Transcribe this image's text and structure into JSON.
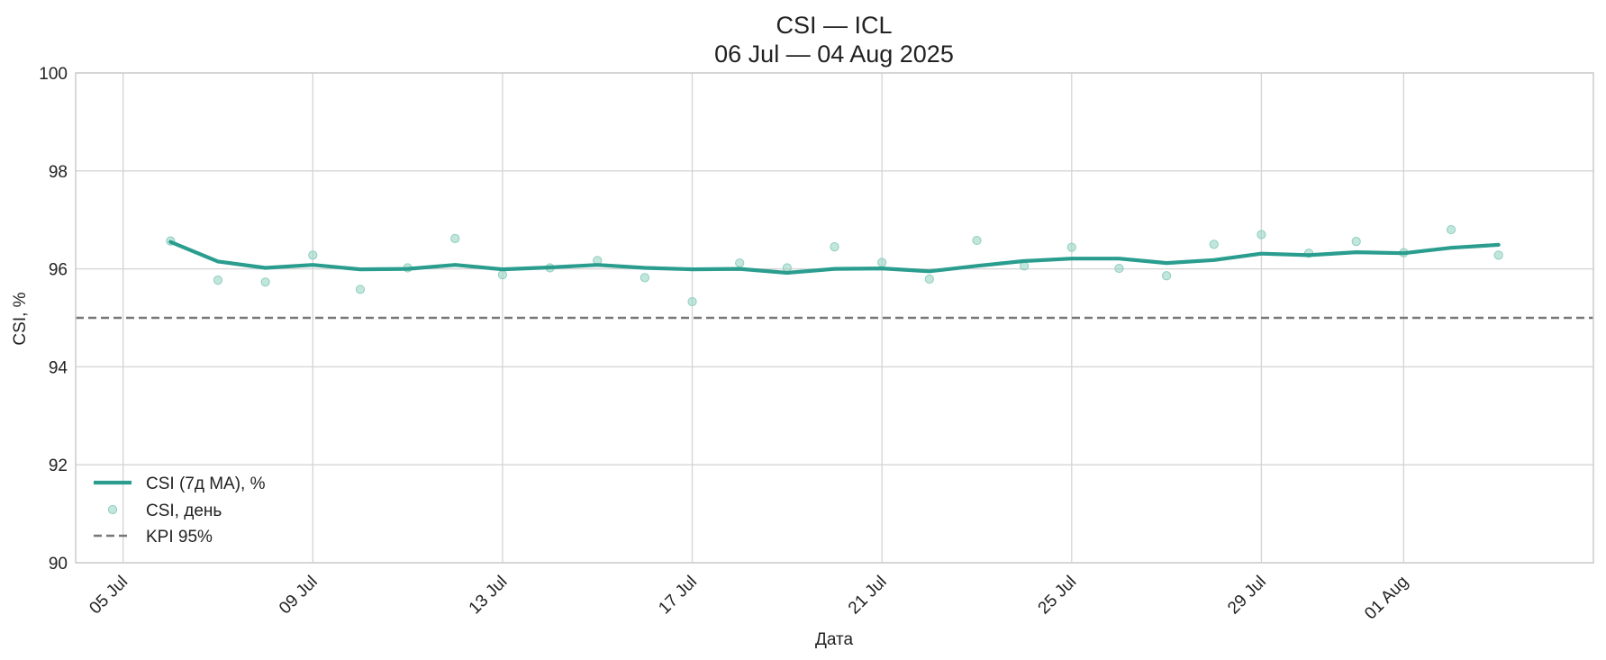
{
  "chart_data": {
    "type": "line",
    "title": "CSI — ICL",
    "subtitle": "06 Jul — 04 Aug 2025",
    "xlabel": "Дата",
    "ylabel": "CSI, %",
    "ylim": [
      90,
      100
    ],
    "yticks": [
      90,
      92,
      94,
      96,
      98,
      100
    ],
    "xlim": [
      "2025-07-04",
      "2025-08-05"
    ],
    "xticks": [
      {
        "date": "2025-07-05",
        "label": "05 Jul"
      },
      {
        "date": "2025-07-09",
        "label": "09 Jul"
      },
      {
        "date": "2025-07-13",
        "label": "13 Jul"
      },
      {
        "date": "2025-07-17",
        "label": "17 Jul"
      },
      {
        "date": "2025-07-21",
        "label": "21 Jul"
      },
      {
        "date": "2025-07-25",
        "label": "25 Jul"
      },
      {
        "date": "2025-07-29",
        "label": "29 Jul"
      },
      {
        "date": "2025-08-01",
        "label": "01 Aug"
      }
    ],
    "grid": true,
    "legend_position": "lower-left",
    "x": [
      "2025-07-06",
      "2025-07-07",
      "2025-07-08",
      "2025-07-09",
      "2025-07-10",
      "2025-07-11",
      "2025-07-12",
      "2025-07-13",
      "2025-07-14",
      "2025-07-15",
      "2025-07-16",
      "2025-07-17",
      "2025-07-18",
      "2025-07-19",
      "2025-07-20",
      "2025-07-21",
      "2025-07-22",
      "2025-07-23",
      "2025-07-24",
      "2025-07-25",
      "2025-07-26",
      "2025-07-27",
      "2025-07-28",
      "2025-07-29",
      "2025-07-30",
      "2025-07-31",
      "2025-08-01",
      "2025-08-02",
      "2025-08-03"
    ],
    "series": [
      {
        "name": "CSI (7д MA), %",
        "style": "line",
        "color": "#2a9d8f",
        "values": [
          96.55,
          96.15,
          96.02,
          96.08,
          95.99,
          96.0,
          96.08,
          95.99,
          96.03,
          96.08,
          96.02,
          95.99,
          96.0,
          95.92,
          96.0,
          96.01,
          95.95,
          96.06,
          96.16,
          96.21,
          96.21,
          96.12,
          96.18,
          96.31,
          96.28,
          96.34,
          96.32,
          96.43,
          96.49
        ]
      },
      {
        "name": "CSI, день",
        "style": "points",
        "color": "#8fcfc0",
        "values": [
          96.57,
          95.77,
          95.73,
          96.28,
          95.58,
          96.02,
          96.62,
          95.88,
          96.02,
          96.17,
          95.82,
          95.33,
          96.12,
          96.02,
          96.45,
          96.13,
          95.79,
          96.58,
          96.06,
          96.44,
          96.01,
          95.86,
          96.5,
          96.7,
          96.32,
          96.56,
          96.33,
          96.8,
          96.28
        ]
      }
    ],
    "reference_lines": [
      {
        "name": "KPI 95%",
        "y": 95,
        "color": "#777777",
        "dash": true
      }
    ]
  }
}
